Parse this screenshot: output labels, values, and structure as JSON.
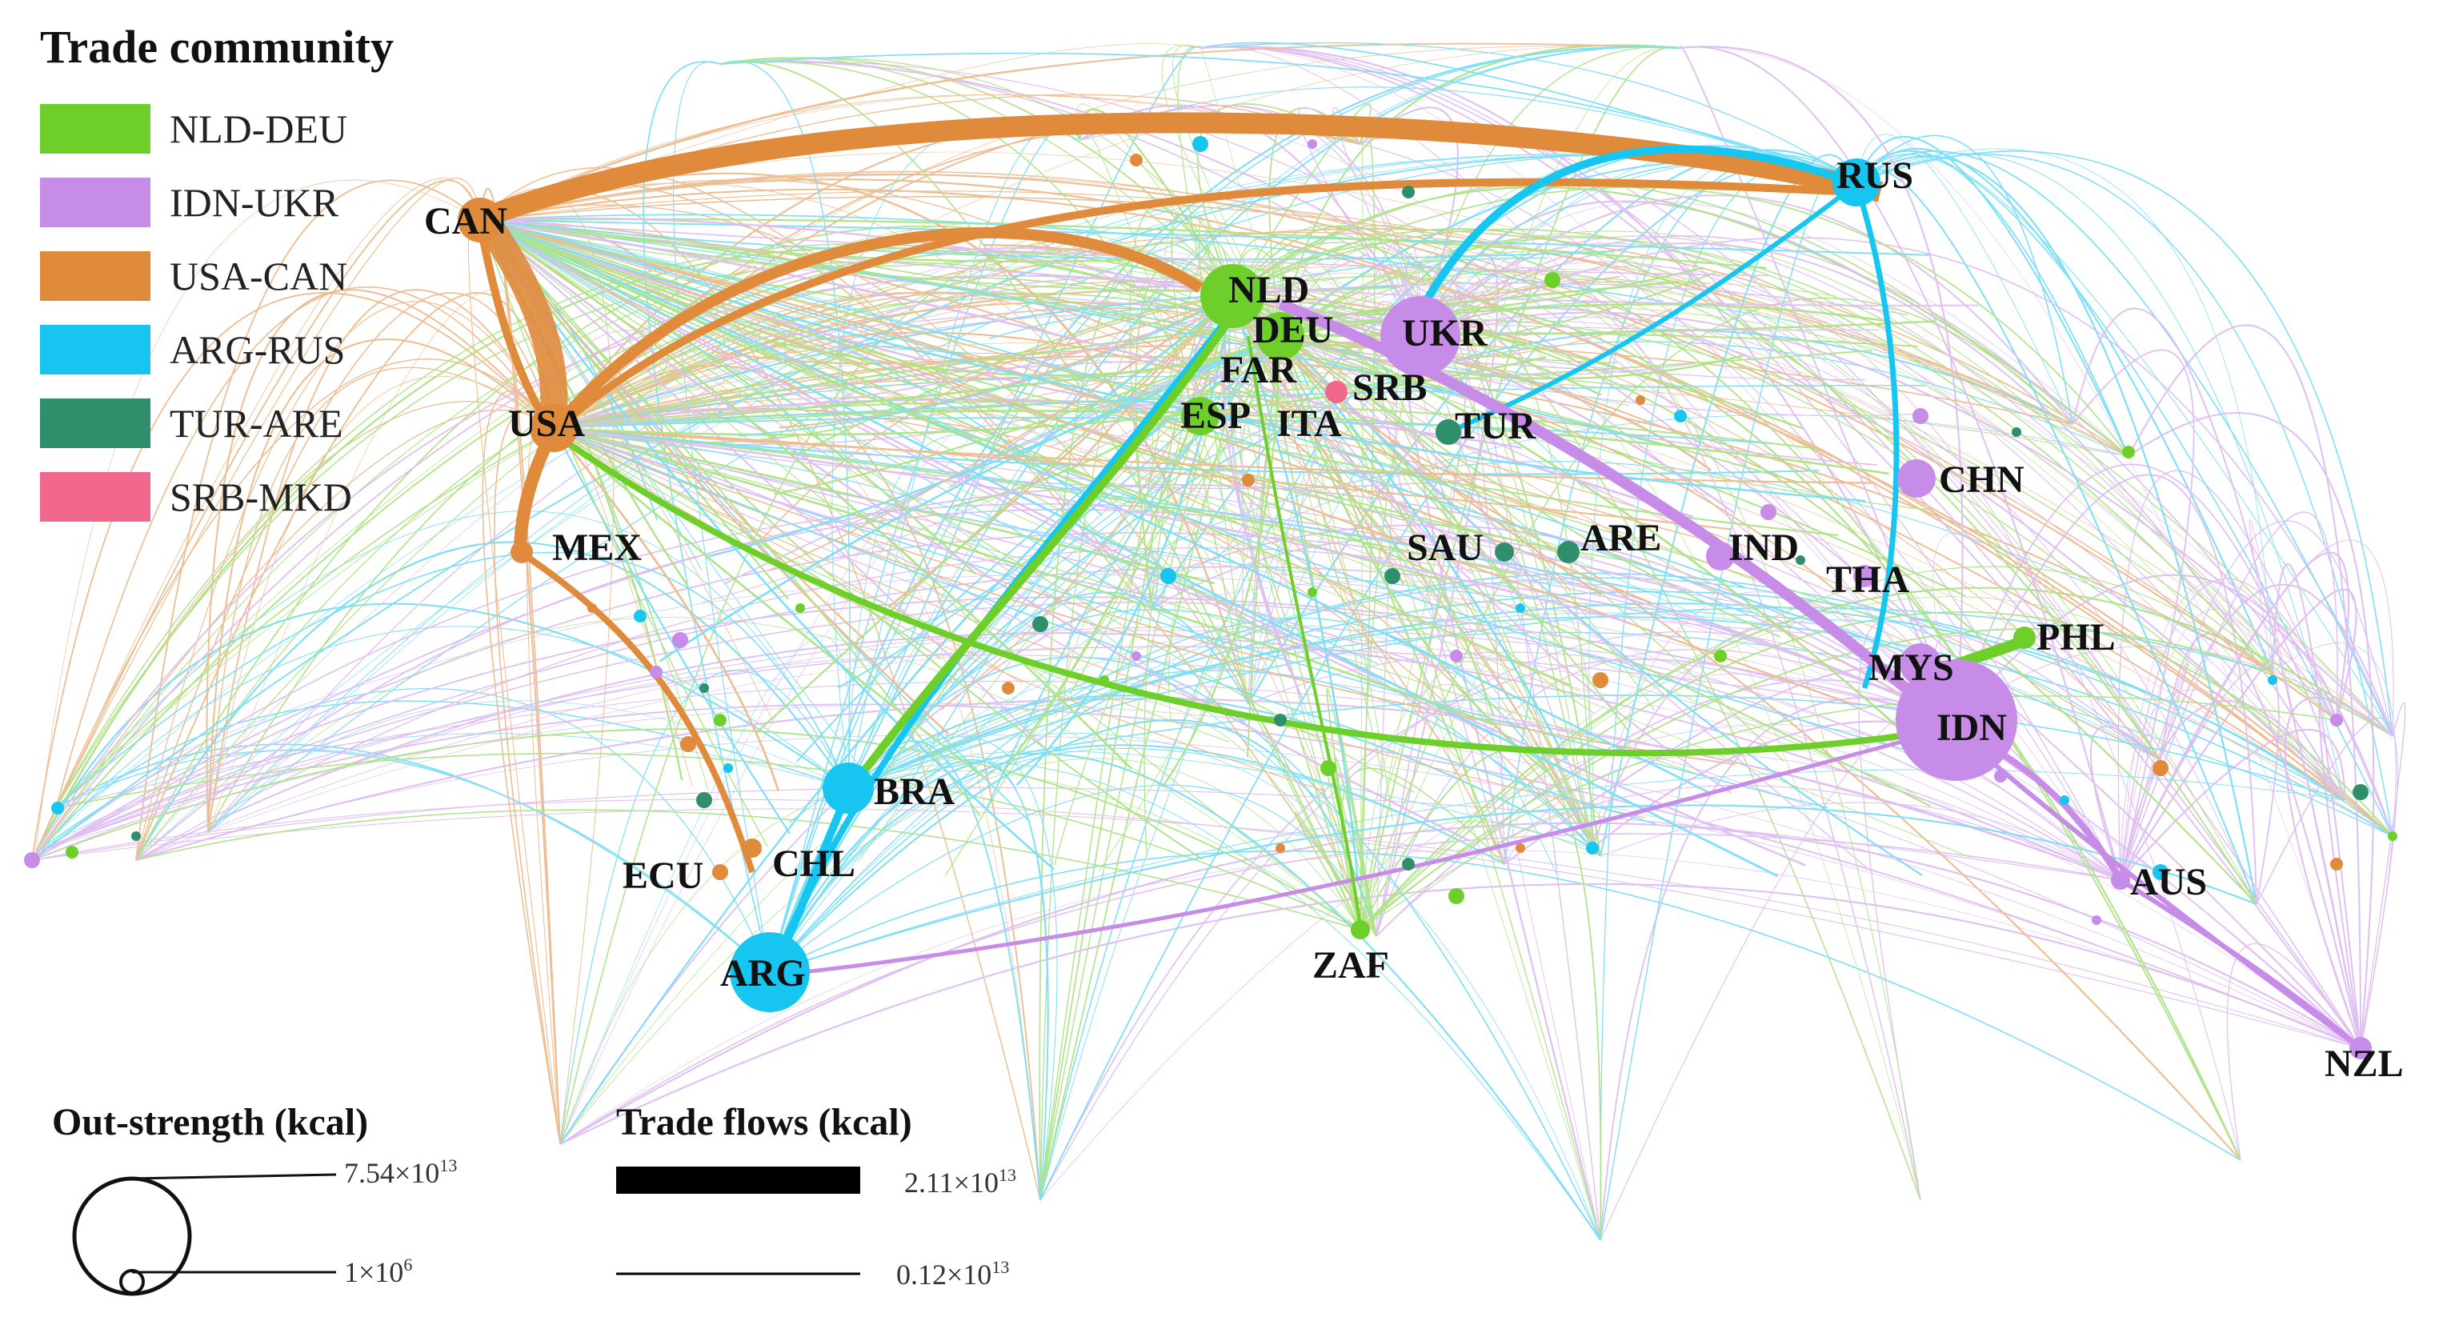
{
  "legend": {
    "title": "Trade community",
    "items": [
      {
        "label": "NLD-DEU",
        "color": "#6fcf2a"
      },
      {
        "label": "IDN-UKR",
        "color": "#c78be8"
      },
      {
        "label": "USA-CAN",
        "color": "#e08a3c"
      },
      {
        "label": "ARG-RUS",
        "color": "#16c6f0"
      },
      {
        "label": "TUR-ARE",
        "color": "#2f8f6a"
      },
      {
        "label": "SRB-MKD",
        "color": "#f2688c"
      }
    ]
  },
  "nodes": [
    {
      "code": "CAN",
      "community": "USA-CAN"
    },
    {
      "code": "USA",
      "community": "USA-CAN"
    },
    {
      "code": "MEX",
      "community": "USA-CAN"
    },
    {
      "code": "ECU",
      "community": "USA-CAN"
    },
    {
      "code": "CHL",
      "community": "USA-CAN"
    },
    {
      "code": "BRA",
      "community": "ARG-RUS"
    },
    {
      "code": "ARG",
      "community": "ARG-RUS"
    },
    {
      "code": "RUS",
      "community": "ARG-RUS"
    },
    {
      "code": "NLD",
      "community": "NLD-DEU"
    },
    {
      "code": "DEU",
      "community": "NLD-DEU"
    },
    {
      "code": "FAR",
      "community": "NLD-DEU"
    },
    {
      "code": "ESP",
      "community": "NLD-DEU"
    },
    {
      "code": "ITA",
      "community": "NLD-DEU"
    },
    {
      "code": "SRB",
      "community": "SRB-MKD"
    },
    {
      "code": "UKR",
      "community": "IDN-UKR"
    },
    {
      "code": "TUR",
      "community": "TUR-ARE"
    },
    {
      "code": "SAU",
      "community": "TUR-ARE"
    },
    {
      "code": "ARE",
      "community": "TUR-ARE"
    },
    {
      "code": "IND",
      "community": "IDN-UKR"
    },
    {
      "code": "THA",
      "community": "IDN-UKR"
    },
    {
      "code": "CHN",
      "community": "IDN-UKR"
    },
    {
      "code": "MYS",
      "community": "IDN-UKR"
    },
    {
      "code": "IDN",
      "community": "IDN-UKR"
    },
    {
      "code": "PHL",
      "community": "NLD-DEU"
    },
    {
      "code": "AUS",
      "community": "IDN-UKR"
    },
    {
      "code": "NZL",
      "community": "IDN-UKR"
    },
    {
      "code": "ZAF",
      "community": "NLD-DEU"
    }
  ],
  "out_strength": {
    "title": "Out-strength (kcal)",
    "max_mantissa": "7.54×10",
    "max_exp": "13",
    "min_mantissa": "1×10",
    "min_exp": "6"
  },
  "trade_flows": {
    "title": "Trade flows (kcal)",
    "max_mantissa": "2.11×10",
    "max_exp": "13",
    "min_mantissa": "0.12×10",
    "min_exp": "13"
  }
}
